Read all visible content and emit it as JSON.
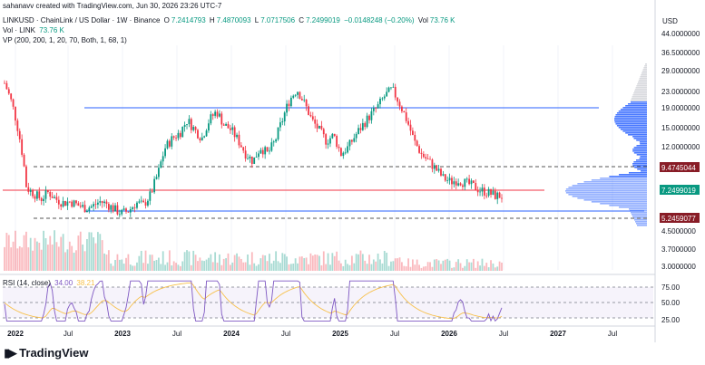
{
  "caption": "sahanavv created with TradingView.com, Jun 30, 2026 23:26 UTC-7",
  "legend": {
    "symbol": "LINKUSD · ChainLink / US Dollar · 1W · Binance",
    "o_label": "O",
    "o_value": "7.2414793",
    "h_label": "H",
    "h_value": "7.4870093",
    "l_label": "L",
    "l_value": "7.0717506",
    "c_label": "C",
    "c_value": "7.2499019",
    "change": "−0.0148248 (−0.20%)",
    "vol_label": "Vol",
    "vol_value": "73.76 K",
    "vol_series_label": "Vol · LINK",
    "vol_series_value": "73.76 K",
    "vp_label": "VP (200, 200, 1, 20, 70, Both, 1, 68, 1)"
  },
  "rsi_legend": {
    "label": "RSI (14, close)",
    "value": "34.00",
    "ma_value": "38.21"
  },
  "branding": "TradingView",
  "colors": {
    "up": "#089981",
    "down": "#f23645",
    "hline": "#2962ff",
    "vp_up": "#2962ff",
    "vp_down": "#b2b5be",
    "rsi": "#7e57c2",
    "rsi_ma": "#f7c04a"
  },
  "chart_data": {
    "type": "candlestick",
    "currency_label": "USD",
    "price_axis_ticks": [
      "44.0000000",
      "36.5000000",
      "29.0000000",
      "23.0000000",
      "19.0000000",
      "15.0000000",
      "12.0000000",
      "9.4745044",
      "7.2499019",
      "5.2459077",
      "4.5000000",
      "3.7000000",
      "3.0000000"
    ],
    "price_badges": [
      {
        "value": "9.4745044",
        "color": "#881c26"
      },
      {
        "value": "7.2499019",
        "color": "#089981"
      },
      {
        "value": "5.2459077",
        "color": "#881c26"
      }
    ],
    "time_axis_labels": [
      "2022",
      "Jul",
      "2023",
      "Jul",
      "2024",
      "Jul",
      "2025",
      "Jul",
      "2026",
      "Jul",
      "2027",
      "Jul"
    ],
    "rsi_axis_ticks": [
      "75.00",
      "50.00",
      "25.00"
    ],
    "horizontal_lines": [
      {
        "price": 18.5,
        "style": "solid"
      },
      {
        "price": 5.8,
        "style": "solid"
      },
      {
        "price": 9.47,
        "style": "dashed"
      },
      {
        "price": 5.25,
        "style": "dashed"
      },
      {
        "price": 7.25,
        "style": "solid-red"
      }
    ],
    "price_path": [
      28,
      22,
      15,
      8,
      7.5,
      7,
      7.6,
      7,
      6.7,
      6.8,
      6.5,
      6.3,
      6.4,
      6.8,
      6.6,
      6.2,
      5.9,
      6.1,
      6.7,
      6.5,
      7.4,
      9.5,
      13,
      14.5,
      15.5,
      18,
      16,
      14.5,
      18,
      20,
      17,
      16,
      14,
      12,
      11,
      13,
      12,
      14,
      18,
      23,
      26,
      22,
      18,
      16,
      14,
      15,
      12,
      13,
      15,
      17,
      19,
      21,
      24,
      26,
      22,
      18,
      14,
      12,
      11,
      10,
      9,
      8.6,
      8.8,
      8.5,
      8.2,
      7.8,
      7.6,
      7.3,
      7.25
    ],
    "volume_profile_range": [
      4.5,
      30
    ]
  }
}
